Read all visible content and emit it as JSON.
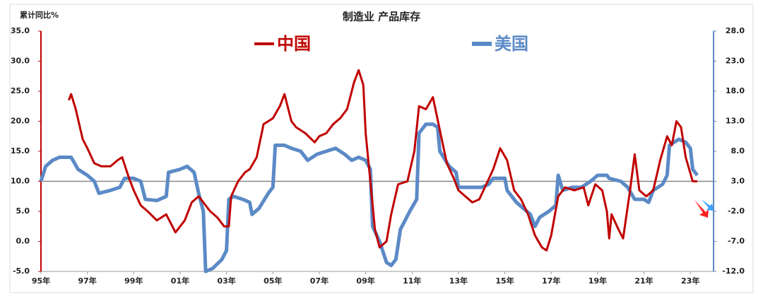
{
  "chart_data": {
    "type": "line",
    "title": "制造业 产品库存",
    "y_label": "累计同比%",
    "xlim": [
      1995,
      2024
    ],
    "xticks": [
      {
        "value": 1995,
        "label": "95年"
      },
      {
        "value": 1997,
        "label": "97年"
      },
      {
        "value": 1999,
        "label": "99年"
      },
      {
        "value": 2001,
        "label": "01年"
      },
      {
        "value": 2003,
        "label": "03年"
      },
      {
        "value": 2005,
        "label": "05年"
      },
      {
        "value": 2007,
        "label": "07年"
      },
      {
        "value": 2009,
        "label": "09年"
      },
      {
        "value": 2011,
        "label": "11年"
      },
      {
        "value": 2013,
        "label": "13年"
      },
      {
        "value": 2015,
        "label": "15年"
      },
      {
        "value": 2017,
        "label": "17年"
      },
      {
        "value": 2019,
        "label": "19年"
      },
      {
        "value": 2021,
        "label": "21年"
      },
      {
        "value": 2023,
        "label": "23年"
      }
    ],
    "ylim": [
      -5,
      35
    ],
    "yticks": [
      {
        "value": -5,
        "label": "-5.0"
      },
      {
        "value": 0,
        "label": "0.0"
      },
      {
        "value": 5,
        "label": "5.0"
      },
      {
        "value": 10,
        "label": "10.0"
      },
      {
        "value": 15,
        "label": "15.0"
      },
      {
        "value": 20,
        "label": "20.0"
      },
      {
        "value": 25,
        "label": "25.0"
      },
      {
        "value": 30,
        "label": "30.0"
      },
      {
        "value": 35,
        "label": "35.0"
      }
    ],
    "y2lim": [
      -12,
      28
    ],
    "y2ticks": [
      {
        "value": -12,
        "label": "-12.0"
      },
      {
        "value": -7,
        "label": "-7.0"
      },
      {
        "value": -2,
        "label": "-2.0"
      },
      {
        "value": 3,
        "label": "3.0"
      },
      {
        "value": 8,
        "label": "8.0"
      },
      {
        "value": 13,
        "label": "13.0"
      },
      {
        "value": 18,
        "label": "18.0"
      },
      {
        "value": 23,
        "label": "23.0"
      },
      {
        "value": 28,
        "label": "28.0"
      }
    ],
    "series": [
      {
        "name": "中国",
        "color": "#c00000",
        "x": [
          1996.2,
          1996.3,
          1996.5,
          1996.8,
          1997.0,
          1997.3,
          1997.6,
          1998.0,
          1998.3,
          1998.5,
          1998.8,
          1999.0,
          1999.3,
          1999.6,
          2000.0,
          2000.4,
          2000.8,
          2001.2,
          2001.5,
          2001.8,
          2002.0,
          2002.3,
          2002.6,
          2002.9,
          2003.1,
          2003.2,
          2003.5,
          2003.8,
          2004.0,
          2004.3,
          2004.6,
          2005.0,
          2005.3,
          2005.5,
          2005.8,
          2006.0,
          2006.4,
          2006.8,
          2007.0,
          2007.3,
          2007.6,
          2007.9,
          2008.2,
          2008.5,
          2008.7,
          2008.9,
          2009.0,
          2009.2,
          2009.4,
          2009.6,
          2009.9,
          2010.1,
          2010.4,
          2010.8,
          2011.1,
          2011.3,
          2011.6,
          2011.9,
          2012.2,
          2012.5,
          2012.8,
          2013.0,
          2013.3,
          2013.6,
          2013.9,
          2014.2,
          2014.5,
          2014.8,
          2015.1,
          2015.4,
          2015.7,
          2016.0,
          2016.3,
          2016.6,
          2016.8,
          2017.0,
          2017.3,
          2017.6,
          2018.0,
          2018.4,
          2018.6,
          2018.9,
          2019.2,
          2019.4,
          2019.5,
          2019.6,
          2019.9,
          2020.1,
          2020.4,
          2020.6,
          2020.8,
          2021.1,
          2021.4,
          2021.7,
          2022.0,
          2022.2,
          2022.4,
          2022.6,
          2022.8,
          2023.1,
          2023.3
        ],
        "values": [
          23.5,
          24.5,
          22,
          17,
          15.5,
          13,
          12.5,
          12.5,
          13.5,
          14,
          10.5,
          8.5,
          6,
          5,
          3.5,
          4.5,
          1.5,
          3.5,
          6.5,
          7.5,
          6.5,
          5,
          4,
          2.5,
          2.5,
          7.5,
          10,
          11.5,
          12,
          14,
          19.5,
          20.5,
          22.5,
          24.5,
          20,
          19,
          18,
          16.5,
          17.5,
          18,
          19.5,
          20.5,
          22,
          26.5,
          28.5,
          26,
          18,
          10,
          2,
          -1,
          0,
          4.5,
          9.5,
          10,
          15,
          22.5,
          22,
          24,
          18.5,
          13,
          10.5,
          8.5,
          7.5,
          6.5,
          7,
          9.5,
          12,
          15.5,
          13.5,
          8.5,
          7,
          4.5,
          1,
          -1,
          -1.5,
          1,
          7.5,
          9,
          8.5,
          9,
          6,
          9.5,
          8.5,
          5,
          0.5,
          4.5,
          2,
          0.5,
          8.5,
          14.5,
          8.5,
          7.5,
          8.5,
          13.5,
          17.5,
          16,
          20,
          19,
          14,
          10,
          10
        ]
      },
      {
        "name": "美国",
        "color": "#5b8ac6",
        "axis": "y2",
        "x": [
          1995.0,
          1995.2,
          1995.5,
          1995.8,
          1996.3,
          1996.6,
          1997.0,
          1997.3,
          1997.5,
          1998.0,
          1998.4,
          1998.6,
          1999.0,
          1999.3,
          1999.5,
          2000.0,
          2000.4,
          2000.5,
          2001.0,
          2001.3,
          2001.6,
          2001.8,
          2002.0,
          2002.1,
          2002.4,
          2002.8,
          2003.0,
          2003.1,
          2003.3,
          2003.7,
          2004.0,
          2004.1,
          2004.4,
          2004.8,
          2005.0,
          2005.1,
          2005.5,
          2005.8,
          2006.2,
          2006.5,
          2006.9,
          2007.3,
          2007.7,
          2008.1,
          2008.4,
          2008.7,
          2009.0,
          2009.2,
          2009.3,
          2009.6,
          2009.9,
          2010.1,
          2010.3,
          2010.5,
          2010.9,
          2011.2,
          2011.3,
          2011.6,
          2011.9,
          2012.1,
          2012.2,
          2012.6,
          2012.9,
          2013.0,
          2013.5,
          2014.0,
          2014.3,
          2014.5,
          2015.0,
          2015.1,
          2015.5,
          2015.8,
          2016.1,
          2016.3,
          2016.5,
          2016.9,
          2017.2,
          2017.3,
          2017.5,
          2017.9,
          2018.3,
          2018.7,
          2019.0,
          2019.4,
          2019.5,
          2020.0,
          2020.3,
          2020.6,
          2021.0,
          2021.2,
          2021.4,
          2021.8,
          2022.0,
          2022.1,
          2022.5,
          2022.8,
          2023.0,
          2023.1,
          2023.3
        ],
        "values": [
          3,
          5.5,
          6.5,
          7,
          7,
          5,
          4,
          3,
          1,
          1.5,
          2,
          3.5,
          3.5,
          3,
          0,
          -0.2,
          0.5,
          4.5,
          5,
          5.5,
          4.5,
          1,
          -2,
          -12,
          -11.5,
          -10,
          -8.5,
          0,
          0.5,
          0,
          -0.5,
          -2.5,
          -1.5,
          1,
          2,
          9,
          9,
          8.5,
          8,
          6.5,
          7.5,
          8,
          8.5,
          7.5,
          6.5,
          7,
          6.5,
          5,
          -4.5,
          -7,
          -10.5,
          -11,
          -10,
          -5,
          -2,
          0,
          11,
          12.5,
          12.5,
          12,
          8,
          5.5,
          4.5,
          2,
          2,
          2,
          2.5,
          3.5,
          3.5,
          1.5,
          -0.5,
          -1.5,
          -2.5,
          -4.5,
          -3,
          -2,
          -1,
          4,
          1.5,
          2,
          2,
          3,
          4,
          4,
          3.5,
          3,
          2,
          0,
          0,
          -0.5,
          1.5,
          2.5,
          4,
          9,
          10,
          9.5,
          8.5,
          5,
          4
        ]
      }
    ]
  }
}
